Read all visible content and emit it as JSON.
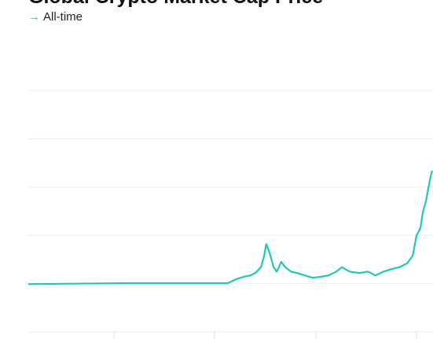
{
  "chart_data": {
    "type": "line",
    "title": "Global Crypto Market Cap Price",
    "subtitle_icon": "→",
    "subtitle": "All-time",
    "x": [
      0,
      24.1,
      49.3,
      51.3,
      53.2,
      54.8,
      56.1,
      57.5,
      58.3,
      58.8,
      59.4,
      60.0,
      60.6,
      61.4,
      62.5,
      63.5,
      64.9,
      66.4,
      68.3,
      70.3,
      72.2,
      74.2,
      76.1,
      77.5,
      79.4,
      81.9,
      83.9,
      85.8,
      87.8,
      89.7,
      91.7,
      93.6,
      95.0,
      95.9,
      96.9,
      97.5,
      98.3,
      98.8,
      99.4,
      99.8
    ],
    "series": [
      {
        "color": "#1fc8b2",
        "values": [
          0.99,
          1.01,
          1.01,
          1.09,
          1.14,
          1.17,
          1.22,
          1.34,
          1.58,
          1.82,
          1.69,
          1.53,
          1.34,
          1.25,
          1.45,
          1.34,
          1.25,
          1.22,
          1.17,
          1.12,
          1.14,
          1.17,
          1.25,
          1.34,
          1.25,
          1.22,
          1.25,
          1.17,
          1.25,
          1.3,
          1.34,
          1.42,
          1.58,
          1.99,
          2.15,
          2.48,
          2.72,
          2.96,
          3.21,
          3.34
        ]
      }
    ],
    "xlim": [
      0,
      100
    ],
    "xticks": [
      21.2,
      46.0,
      71.1,
      95.9
    ],
    "ylim": [
      0,
      5
    ],
    "yticks": [
      0,
      1,
      2,
      3,
      4,
      5
    ],
    "grid": true
  }
}
